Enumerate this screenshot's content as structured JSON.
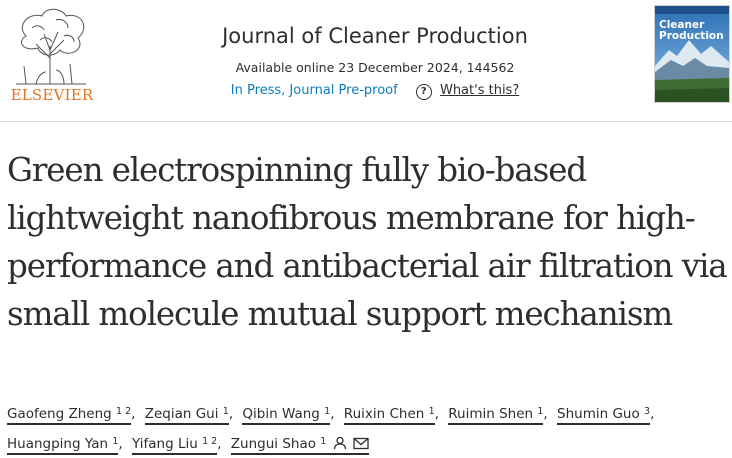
{
  "header": {
    "publisher": "ELSEVIER",
    "journal_title": "Journal of Cleaner Production",
    "availability": "Available online 23 December 2024, 144562",
    "status_link": "In Press, Journal Pre-proof",
    "help_icon": "question-circle-icon",
    "whats_this": "What's this?",
    "cover_title": "Cleaner Production"
  },
  "article": {
    "title": "Green electrospinning fully bio-based lightweight nanofibrous membrane for high-performance and antibacterial air filtration via small molecule mutual support mechanism"
  },
  "authors": [
    {
      "name": "Gaofeng Zheng",
      "sup": "1 2"
    },
    {
      "name": "Zeqian Gui",
      "sup": "1"
    },
    {
      "name": "Qibin Wang",
      "sup": "1"
    },
    {
      "name": "Ruixin Chen",
      "sup": "1"
    },
    {
      "name": "Ruimin Shen",
      "sup": "1"
    },
    {
      "name": "Shumin Guo",
      "sup": "3"
    },
    {
      "name": "Huangping Yan",
      "sup": "1"
    },
    {
      "name": "Yifang Liu",
      "sup": "1 2"
    },
    {
      "name": "Zungui Shao",
      "sup": "1"
    }
  ],
  "author_icons": [
    "person-icon",
    "mail-icon"
  ],
  "colors": {
    "link_blue": "#0c7dbb",
    "elsevier_orange": "#e9711c",
    "text": "#2e2e2e"
  }
}
